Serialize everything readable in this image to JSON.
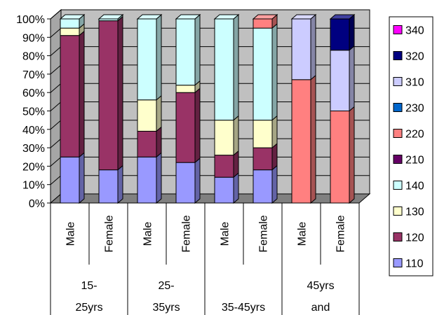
{
  "chart_data": {
    "type": "bar",
    "stacked": true,
    "percent_stacked": true,
    "three_d": true,
    "grid": true,
    "legend_position": "right",
    "title": "",
    "xlabel": "",
    "ylabel": "",
    "ylim": [
      0,
      100
    ],
    "y_ticks": [
      "0%",
      "10%",
      "20%",
      "30%",
      "40%",
      "50%",
      "60%",
      "70%",
      "80%",
      "90%",
      "100%"
    ],
    "groups": [
      {
        "label_lines": [
          "15-",
          "25yrs"
        ],
        "sub": [
          "Male",
          "Female"
        ]
      },
      {
        "label_lines": [
          "25-",
          "35yrs"
        ],
        "sub": [
          "Male",
          "Female"
        ]
      },
      {
        "label_lines": [
          "35-45yrs"
        ],
        "sub": [
          "Male",
          "Female"
        ]
      },
      {
        "label_lines": [
          "45yrs",
          "and"
        ],
        "sub": [
          "Male",
          "Female"
        ]
      }
    ],
    "categories": [
      "Male",
      "Female",
      "Male",
      "Female",
      "Male",
      "Female",
      "Male",
      "Female"
    ],
    "series": [
      {
        "name": "110",
        "color": "#9999ff",
        "values": [
          25,
          18,
          25,
          22,
          14,
          18,
          0,
          0
        ]
      },
      {
        "name": "120",
        "color": "#993366",
        "values": [
          66,
          81,
          14,
          38,
          12,
          12,
          0,
          0
        ]
      },
      {
        "name": "130",
        "color": "#ffffcc",
        "values": [
          4,
          0,
          17,
          4,
          19,
          15,
          0,
          0
        ]
      },
      {
        "name": "140",
        "color": "#ccffff",
        "values": [
          5,
          1,
          44,
          36,
          55,
          50,
          0,
          0
        ]
      },
      {
        "name": "210",
        "color": "#660066",
        "values": [
          0,
          0,
          0,
          0,
          0,
          0,
          0,
          0
        ]
      },
      {
        "name": "220",
        "color": "#ff8080",
        "values": [
          0,
          0,
          0,
          0,
          0,
          5,
          67,
          50
        ]
      },
      {
        "name": "230",
        "color": "#0066cc",
        "values": [
          0,
          0,
          0,
          0,
          0,
          0,
          0,
          0
        ]
      },
      {
        "name": "310",
        "color": "#ccccff",
        "values": [
          0,
          0,
          0,
          0,
          0,
          0,
          33,
          33
        ]
      },
      {
        "name": "320",
        "color": "#000080",
        "values": [
          0,
          0,
          0,
          0,
          0,
          0,
          0,
          17
        ]
      },
      {
        "name": "340",
        "color": "#ff00ff",
        "values": [
          0,
          0,
          0,
          0,
          0,
          0,
          0,
          0
        ]
      }
    ]
  }
}
